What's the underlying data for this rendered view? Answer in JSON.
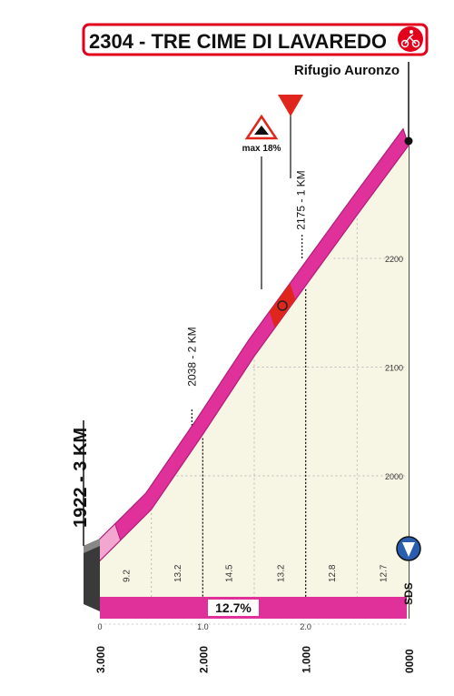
{
  "header": {
    "title": "2304 - TRE CIME DI LAVAREDO",
    "summit_name": "Rifugio Auronzo",
    "title_border_color": "#e3001b",
    "badge_icon": "cycling-climb-icon"
  },
  "markers": {
    "max_gradient_label": "max 18%",
    "summit_marker_icon": "red-triangle-icon",
    "warning_icon": "steep-gradient-warning-icon",
    "side_start_label": "1922 - 3 KM",
    "sds_icon": "sprint-bonus-icon",
    "sds_label": "SDS"
  },
  "average_gradient": "12.7%",
  "colors": {
    "profile": "#e0309a",
    "profile_dark": "#b01e78",
    "fill": "#f7f6e4",
    "steep": "#e0251c",
    "wall": "#3a3a3a"
  },
  "chart_data": {
    "type": "area",
    "distance_to_go_ticks": [
      "3.000",
      "2.000",
      "1.000",
      "0000"
    ],
    "distance_ticks": [
      "0",
      "1.0",
      "2.0"
    ],
    "elevation_ticks": [
      "2000",
      "2100",
      "2200"
    ],
    "profile": {
      "x_km_to_go": [
        3.0,
        2.5,
        2.0,
        1.5,
        1.0,
        0.5,
        0.0
      ],
      "elevation_m": [
        1922,
        1969,
        2038,
        2110,
        2175,
        2240,
        2304
      ]
    },
    "segment_gradients": [
      "9.2",
      "13.2",
      "14.5",
      "13.2",
      "12.8",
      "12.7"
    ],
    "marker_labels": [
      {
        "km_to_go": 2.0,
        "label": "2038 - 2 KM"
      },
      {
        "km_to_go": 1.0,
        "label": "2175 - 1 KM"
      }
    ],
    "steep_section": {
      "km_to_go": [
        1.3,
        1.1
      ],
      "max_gradient": "18%"
    },
    "xlim": [
      3.0,
      0.0
    ],
    "ylim_visual": [
      1922,
      2304
    ]
  }
}
